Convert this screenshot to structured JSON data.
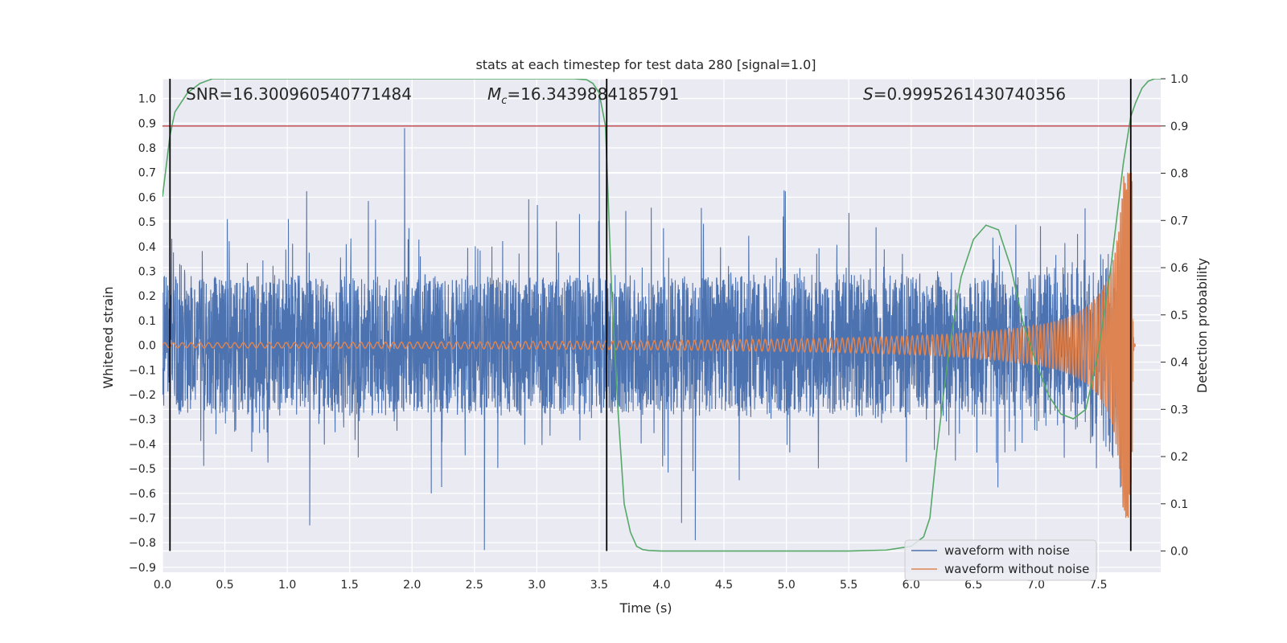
{
  "chart_data": {
    "type": "line",
    "title": "stats at each timestep for test data 280 [signal=1.0]",
    "xlabel": "Time (s)",
    "ylabel": "Whitened strain",
    "y2label": "Detection probability",
    "xlim": [
      0.0,
      8.0
    ],
    "ylim": [
      -0.92,
      1.08
    ],
    "y2lim": [
      -0.045,
      1.0
    ],
    "xticks": [
      0.0,
      0.5,
      1.0,
      1.5,
      2.0,
      2.5,
      3.0,
      3.5,
      4.0,
      4.5,
      5.0,
      5.5,
      6.0,
      6.5,
      7.0,
      7.5
    ],
    "xtick_labels": [
      "0.0",
      "0.5",
      "1.0",
      "1.5",
      "2.0",
      "2.5",
      "3.0",
      "3.5",
      "4.0",
      "4.5",
      "5.0",
      "5.5",
      "6.0",
      "6.5",
      "7.0",
      "7.5"
    ],
    "yticks": [
      1.0,
      0.9,
      0.8,
      0.7,
      0.6,
      0.5,
      0.4,
      0.3,
      0.2,
      0.1,
      0.0,
      -0.1,
      -0.2,
      -0.3,
      -0.4,
      -0.5,
      -0.6,
      -0.7,
      -0.8,
      -0.9
    ],
    "ytick_labels": [
      "1.0",
      "0.9",
      "0.8",
      "0.7",
      "0.6",
      "0.5",
      "0.4",
      "0.3",
      "0.2",
      "0.1",
      "0.0",
      "−0.1",
      "−0.2",
      "−0.3",
      "−0.4",
      "−0.5",
      "−0.6",
      "−0.7",
      "−0.8",
      "−0.9"
    ],
    "y2ticks": [
      1.0,
      0.9,
      0.8,
      0.7,
      0.6,
      0.5,
      0.4,
      0.3,
      0.2,
      0.1,
      0.0
    ],
    "y2tick_labels": [
      "1.0",
      "0.9",
      "0.8",
      "0.7",
      "0.6",
      "0.5",
      "0.4",
      "0.3",
      "0.2",
      "0.1",
      "0.0"
    ],
    "annotations": {
      "snr": "SNR=16.300960540771484",
      "mc_symbol": "M",
      "mc_sub": "c",
      "mc_value": "=16.3439884185791",
      "s_symbol": "S",
      "s_value": "=0.9995261430740356"
    },
    "threshold": {
      "value": 0.9,
      "axis": "right",
      "color": "#c44e52"
    },
    "vertical_markers": [
      0.06,
      3.56,
      7.76
    ],
    "noise": {
      "name": "waveform with noise",
      "color": "#4c72b0",
      "t_range": [
        0.0,
        7.76
      ],
      "envelope_typical": 0.28,
      "max": 1.0,
      "min": -0.83,
      "notable_peaks": [
        {
          "t": 1.94,
          "y": 0.88
        },
        {
          "t": 3.5,
          "y": 1.0
        },
        {
          "t": 2.58,
          "y": -0.83
        },
        {
          "t": 4.27,
          "y": -0.79
        },
        {
          "t": 1.18,
          "y": -0.73
        },
        {
          "t": 4.16,
          "y": -0.72
        }
      ]
    },
    "clean": {
      "name": "waveform without noise",
      "color": "#dd8452",
      "t_range": [
        0.0,
        7.8
      ],
      "merger_time": 7.77,
      "peak_amplitude": 0.7,
      "start_amplitude": 0.01,
      "start_frequency_hz": 14
    },
    "probability": {
      "name": "detection probability",
      "color": "#55a868",
      "axis": "right",
      "t": [
        0.0,
        0.06,
        0.1,
        0.2,
        0.3,
        0.4,
        0.6,
        1.0,
        2.0,
        3.0,
        3.3,
        3.4,
        3.45,
        3.5,
        3.55,
        3.6,
        3.65,
        3.7,
        3.75,
        3.8,
        3.85,
        3.9,
        4.0,
        4.5,
        5.0,
        5.5,
        5.8,
        6.0,
        6.1,
        6.15,
        6.2,
        6.3,
        6.4,
        6.5,
        6.6,
        6.7,
        6.8,
        6.9,
        7.0,
        7.1,
        7.2,
        7.3,
        7.4,
        7.5,
        7.6,
        7.7,
        7.76,
        7.8,
        7.85,
        7.9,
        7.95,
        8.0
      ],
      "p": [
        0.75,
        0.88,
        0.93,
        0.97,
        0.99,
        1.0,
        1.0,
        1.0,
        1.0,
        1.0,
        1.0,
        0.998,
        0.99,
        0.97,
        0.9,
        0.55,
        0.3,
        0.1,
        0.04,
        0.01,
        0.003,
        0.001,
        0.0,
        0.0,
        0.0,
        0.0,
        0.002,
        0.01,
        0.03,
        0.07,
        0.2,
        0.42,
        0.58,
        0.66,
        0.69,
        0.68,
        0.6,
        0.48,
        0.4,
        0.33,
        0.29,
        0.28,
        0.3,
        0.42,
        0.6,
        0.82,
        0.92,
        0.95,
        0.98,
        0.995,
        1.0,
        1.0
      ]
    },
    "legend": {
      "placement": "lower-right",
      "entries": [
        "waveform with noise",
        "waveform without noise"
      ]
    },
    "background_color": "#eaeaf2",
    "grid": true
  }
}
